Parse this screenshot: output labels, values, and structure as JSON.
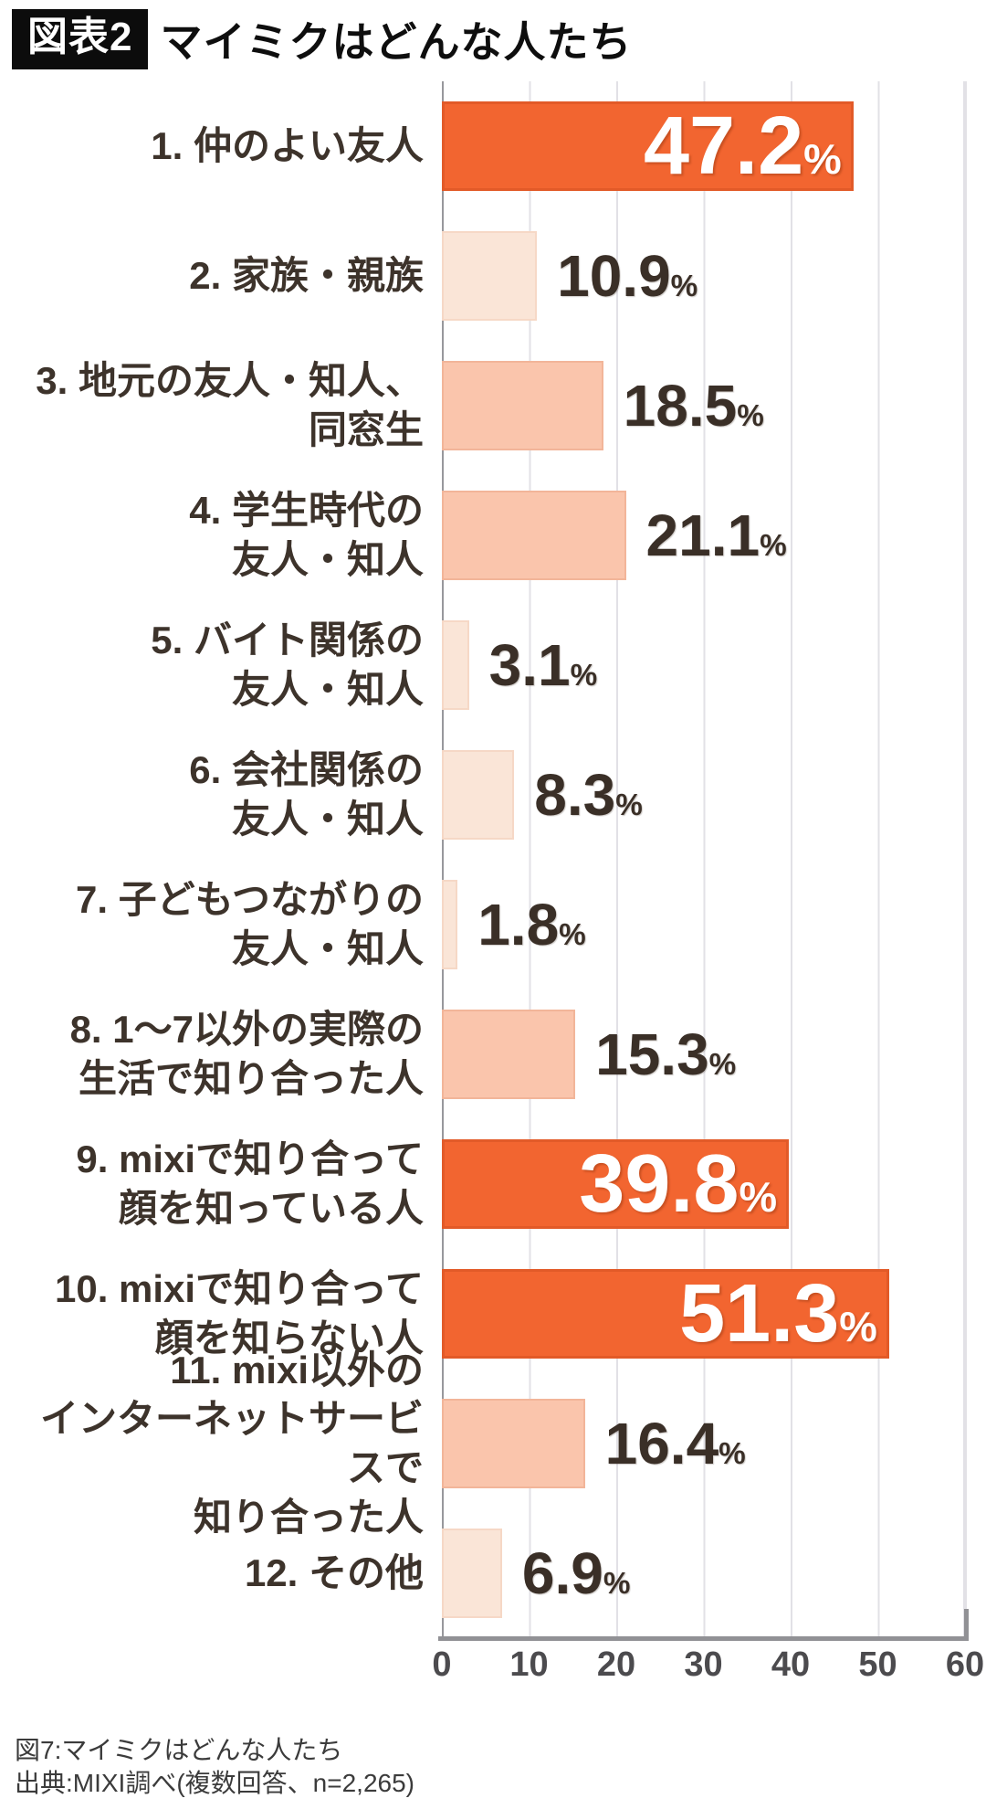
{
  "header": {
    "badge": "図表2",
    "title": "マイミクはどんな人たち"
  },
  "chart_data": {
    "type": "bar",
    "orientation": "horizontal",
    "title": "マイミクはどんな人たち",
    "unit": "%",
    "xlim": [
      0,
      60
    ],
    "x_ticks": [
      0,
      10,
      20,
      30,
      40,
      50,
      60
    ],
    "grid": "vertical-gridlines",
    "legend": "none",
    "categories": [
      "1. 仲のよい友人",
      "2. 家族・親族",
      "3. 地元の友人・知人、同窓生",
      "4. 学生時代の友人・知人",
      "5. バイト関係の友人・知人",
      "6. 会社関係の友人・知人",
      "7. 子どもつながりの友人・知人",
      "8. 1〜7以外の実際の生活で知り合った人",
      "9. mixiで知り合って顔を知っている人",
      "10. mixiで知り合って顔を知らない人",
      "11. mixi以外のインターネットサービスで知り合った人",
      "12. その他"
    ],
    "label_lines": [
      [
        "1. 仲のよい友人"
      ],
      [
        "2. 家族・親族"
      ],
      [
        "3. 地元の友人・知人、",
        "同窓生"
      ],
      [
        "4. 学生時代の",
        "友人・知人"
      ],
      [
        "5. バイト関係の",
        "友人・知人"
      ],
      [
        "6. 会社関係の",
        "友人・知人"
      ],
      [
        "7. 子どもつながりの",
        "友人・知人"
      ],
      [
        "8. 1〜7以外の実際の",
        "生活で知り合った人"
      ],
      [
        "9. mixiで知り合って",
        "顔を知っている人"
      ],
      [
        "10. mixiで知り合って",
        "顔を知らない人"
      ],
      [
        "11. mixi以外の",
        "インターネットサービスで",
        "知り合った人"
      ],
      [
        "12. その他"
      ]
    ],
    "values": [
      47.2,
      10.9,
      18.5,
      21.1,
      3.1,
      8.3,
      1.8,
      15.3,
      39.8,
      51.3,
      16.4,
      6.9
    ],
    "value_labels": [
      "47.2",
      "10.9",
      "18.5",
      "21.1",
      "3.1",
      "8.3",
      "1.8",
      "15.3",
      "39.8",
      "51.3",
      "16.4",
      "6.9"
    ],
    "color_tiers": [
      "orange",
      "pale",
      "pink",
      "pink",
      "pale",
      "pale",
      "pale",
      "pink",
      "orange",
      "orange",
      "pink",
      "pale"
    ],
    "colors": {
      "orange": "#f26530",
      "pink": "#fac5ac",
      "pale": "#fae5d7"
    },
    "value_label_position": {
      "orange": "inside",
      "pink": "outside",
      "pale": "outside"
    }
  },
  "footer": {
    "caption": "図7:マイミクはどんな人たち",
    "source": "出典:MIXI調べ(複数回答、n=2,265)"
  }
}
